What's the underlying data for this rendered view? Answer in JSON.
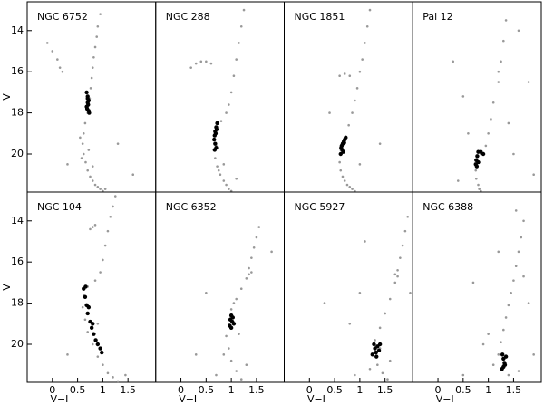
{
  "chart_data": [
    {
      "type": "scatter",
      "title": "NGC 6752",
      "ylabel": "V",
      "xlim": [
        -0.5,
        2.05
      ],
      "ylim": [
        21.85,
        12.6
      ],
      "yticks": [
        14,
        16,
        18,
        20
      ],
      "series": [
        {
          "color": "#999999",
          "x": [
            0.95,
            0.9,
            0.88,
            0.85,
            0.82,
            0.8,
            0.78,
            0.76,
            0.74,
            0.7,
            0.65,
            0.62,
            0.6,
            0.62,
            0.66,
            0.7,
            0.75,
            0.8,
            0.85,
            0.9,
            0.95,
            1.0,
            1.05,
            0.55,
            0.58,
            0.72,
            0.8,
            -0.1,
            0.0,
            0.1,
            0.15,
            0.2,
            1.3,
            0.3,
            1.6
          ],
          "y": [
            13.2,
            13.8,
            14.3,
            14.8,
            15.3,
            15.8,
            16.3,
            16.8,
            17.3,
            18.0,
            18.5,
            19.0,
            19.5,
            20.0,
            20.4,
            20.8,
            21.1,
            21.3,
            21.5,
            21.6,
            21.7,
            21.8,
            21.7,
            19.2,
            20.2,
            19.8,
            20.6,
            14.6,
            15.0,
            15.4,
            15.8,
            16.0,
            19.5,
            20.5,
            21.0
          ]
        },
        {
          "color": "#000000",
          "x": [
            0.68,
            0.7,
            0.72,
            0.71,
            0.69,
            0.73,
            0.7,
            0.68,
            0.72,
            0.7
          ],
          "y": [
            17.0,
            17.2,
            17.4,
            17.6,
            17.8,
            18.0,
            17.3,
            17.7,
            17.9,
            17.5
          ]
        }
      ]
    },
    {
      "type": "scatter",
      "title": "NGC 288",
      "xlim": [
        -0.5,
        2.05
      ],
      "ylim": [
        21.85,
        12.6
      ],
      "series": [
        {
          "color": "#999999",
          "x": [
            1.25,
            1.2,
            1.15,
            1.1,
            1.05,
            1.0,
            0.95,
            0.9,
            0.8,
            0.7,
            0.68,
            0.72,
            0.78,
            0.85,
            0.9,
            0.95,
            1.0,
            0.2,
            0.3,
            0.4,
            0.5,
            0.6,
            0.85,
            1.1,
            0.75
          ],
          "y": [
            13.0,
            13.8,
            14.6,
            15.4,
            16.2,
            17.0,
            17.6,
            18.0,
            18.4,
            19.6,
            20.2,
            20.6,
            21.0,
            21.3,
            21.5,
            21.7,
            21.8,
            15.8,
            15.6,
            15.5,
            15.5,
            15.6,
            20.5,
            21.2,
            20.8
          ]
        },
        {
          "color": "#000000",
          "x": [
            0.72,
            0.7,
            0.68,
            0.67,
            0.66,
            0.68,
            0.7,
            0.69,
            0.67,
            0.71
          ],
          "y": [
            18.5,
            18.7,
            18.9,
            19.1,
            19.3,
            19.5,
            19.7,
            19.0,
            19.8,
            18.8
          ]
        }
      ]
    },
    {
      "type": "scatter",
      "title": "NGC 1851",
      "xlim": [
        -0.5,
        2.05
      ],
      "ylim": [
        21.85,
        12.6
      ],
      "series": [
        {
          "color": "#999999",
          "x": [
            1.2,
            1.15,
            1.1,
            1.05,
            1.0,
            0.95,
            0.9,
            0.85,
            0.78,
            0.7,
            0.62,
            0.6,
            0.62,
            0.66,
            0.7,
            0.75,
            0.8,
            0.85,
            0.9,
            0.6,
            0.7,
            0.8,
            1.0,
            0.4,
            1.4
          ],
          "y": [
            13.0,
            13.8,
            14.6,
            15.4,
            16.0,
            16.8,
            17.4,
            18.0,
            18.6,
            19.2,
            19.8,
            20.4,
            20.8,
            21.1,
            21.3,
            21.5,
            21.6,
            21.7,
            21.8,
            16.2,
            16.1,
            16.2,
            20.5,
            18.0,
            19.5
          ]
        },
        {
          "color": "#000000",
          "x": [
            0.72,
            0.7,
            0.68,
            0.66,
            0.64,
            0.63,
            0.65,
            0.67,
            0.62,
            0.69
          ],
          "y": [
            19.2,
            19.3,
            19.4,
            19.5,
            19.6,
            19.7,
            19.8,
            19.9,
            20.0,
            19.45
          ]
        }
      ]
    },
    {
      "type": "scatter",
      "title": "Pal 12",
      "xlim": [
        -0.5,
        2.05
      ],
      "ylim": [
        21.85,
        12.6
      ],
      "series": [
        {
          "color": "#999999",
          "x": [
            1.35,
            1.3,
            1.25,
            1.2,
            1.1,
            1.05,
            1.0,
            0.95,
            0.85,
            0.78,
            0.75,
            0.76,
            0.8,
            0.82,
            0.85,
            1.6,
            1.8,
            1.4,
            0.3,
            0.5,
            1.5,
            1.9,
            0.6,
            1.2,
            0.4
          ],
          "y": [
            13.5,
            14.5,
            15.5,
            16.5,
            17.5,
            18.3,
            19.0,
            19.6,
            20.0,
            20.4,
            20.8,
            21.2,
            21.5,
            21.7,
            21.8,
            14.0,
            16.5,
            18.5,
            15.5,
            17.2,
            20.0,
            21.0,
            19.0,
            16.0,
            21.3
          ]
        },
        {
          "color": "#000000",
          "x": [
            0.8,
            0.78,
            0.76,
            0.75,
            0.77,
            0.85,
            0.9,
            0.8
          ],
          "y": [
            19.9,
            20.1,
            20.3,
            20.5,
            20.6,
            19.9,
            20.0,
            20.4
          ]
        }
      ]
    },
    {
      "type": "scatter",
      "title": "NGC 104",
      "ylabel": "V",
      "xlabel": "V−I",
      "xlim": [
        -0.5,
        2.05
      ],
      "ylim": [
        21.85,
        12.6
      ],
      "xticks": [
        0,
        0.5,
        1,
        1.5
      ],
      "yticks": [
        14,
        16,
        18,
        20
      ],
      "series": [
        {
          "color": "#999999",
          "x": [
            1.25,
            1.2,
            1.15,
            1.1,
            1.05,
            1.0,
            0.95,
            0.85,
            0.7,
            0.62,
            0.6,
            0.65,
            0.7,
            0.8,
            0.9,
            1.0,
            1.1,
            1.2,
            1.3,
            0.8,
            0.75,
            0.85,
            1.45,
            0.3,
            0.9
          ],
          "y": [
            12.8,
            13.3,
            13.8,
            14.5,
            15.2,
            15.9,
            16.5,
            16.9,
            17.2,
            17.6,
            18.2,
            18.8,
            19.4,
            20.0,
            20.6,
            21.0,
            21.4,
            21.6,
            21.8,
            14.3,
            14.4,
            14.2,
            21.5,
            20.5,
            19.0
          ]
        },
        {
          "color": "#000000",
          "x": [
            0.62,
            0.65,
            0.68,
            0.7,
            0.75,
            0.78,
            0.82,
            0.86,
            0.9,
            0.95,
            0.98,
            0.66,
            0.72,
            0.8
          ],
          "y": [
            17.3,
            17.7,
            18.1,
            18.5,
            18.9,
            19.2,
            19.5,
            19.8,
            20.0,
            20.2,
            20.4,
            17.2,
            18.2,
            19.0
          ]
        }
      ]
    },
    {
      "type": "scatter",
      "title": "NGC 6352",
      "xlabel": "V−I",
      "xlim": [
        -0.5,
        2.05
      ],
      "ylim": [
        21.85,
        12.6
      ],
      "xticks": [
        0,
        0.5,
        1,
        1.5
      ],
      "series": [
        {
          "color": "#999999",
          "x": [
            1.55,
            1.5,
            1.45,
            1.4,
            1.35,
            1.3,
            1.2,
            1.1,
            1.0,
            0.95,
            0.9,
            0.95,
            1.0,
            1.1,
            1.2,
            0.85,
            1.15,
            1.4,
            1.35,
            0.5,
            0.3,
            1.8,
            0.7,
            1.3,
            1.05
          ],
          "y": [
            14.3,
            14.8,
            15.3,
            15.8,
            16.3,
            16.8,
            17.3,
            17.8,
            18.3,
            19.0,
            19.6,
            20.2,
            20.8,
            21.3,
            21.7,
            20.5,
            19.5,
            16.5,
            16.6,
            17.5,
            20.5,
            15.5,
            21.5,
            21.0,
            18.0
          ]
        },
        {
          "color": "#000000",
          "x": [
            1.0,
            0.98,
            1.02,
            1.05,
            0.97,
            1.0,
            1.03
          ],
          "y": [
            18.6,
            18.8,
            18.9,
            19.0,
            19.1,
            19.2,
            18.7
          ]
        }
      ]
    },
    {
      "type": "scatter",
      "title": "NGC 5927",
      "xlabel": "V−I",
      "xlim": [
        -0.5,
        2.05
      ],
      "ylim": [
        21.85,
        12.6
      ],
      "xticks": [
        0,
        0.5,
        1,
        1.5
      ],
      "series": [
        {
          "color": "#999999",
          "x": [
            1.95,
            1.9,
            1.85,
            1.8,
            1.75,
            1.7,
            1.6,
            1.5,
            1.4,
            1.3,
            1.25,
            1.35,
            1.45,
            1.55,
            1.2,
            1.4,
            1.7,
            1.75,
            0.8,
            1.0,
            0.3,
            1.1,
            1.6,
            2.0,
            0.9
          ],
          "y": [
            13.8,
            14.5,
            15.2,
            15.8,
            16.4,
            17.0,
            17.8,
            18.5,
            19.2,
            19.8,
            20.5,
            21.0,
            21.4,
            21.7,
            21.2,
            20.2,
            16.6,
            16.7,
            19.0,
            17.5,
            18.0,
            15.0,
            20.8,
            17.5,
            21.5
          ]
        },
        {
          "color": "#000000",
          "x": [
            1.28,
            1.3,
            1.32,
            1.35,
            1.38,
            1.25,
            1.33,
            1.4
          ],
          "y": [
            20.0,
            20.2,
            20.4,
            20.1,
            20.3,
            20.5,
            20.6,
            20.0
          ]
        }
      ]
    },
    {
      "type": "scatter",
      "title": "NGC 6388",
      "xlabel": "V−I",
      "xlim": [
        -0.5,
        2.05
      ],
      "ylim": [
        21.85,
        12.6
      ],
      "xticks": [
        0,
        0.5,
        1,
        1.5
      ],
      "series": [
        {
          "color": "#999999",
          "x": [
            1.7,
            1.65,
            1.6,
            1.55,
            1.5,
            1.45,
            1.4,
            1.35,
            1.3,
            1.25,
            1.2,
            1.3,
            1.4,
            1.5,
            1.6,
            1.1,
            1.0,
            1.8,
            0.9,
            0.7,
            1.7,
            1.9,
            1.55,
            1.2,
            0.5
          ],
          "y": [
            14.0,
            14.8,
            15.5,
            16.2,
            16.9,
            17.5,
            18.1,
            18.7,
            19.3,
            19.9,
            20.5,
            21.0,
            21.5,
            21.8,
            21.3,
            21.0,
            19.5,
            18.0,
            20.0,
            17.0,
            16.7,
            20.5,
            13.5,
            15.5,
            21.5
          ]
        },
        {
          "color": "#000000",
          "x": [
            1.28,
            1.3,
            1.32,
            1.3,
            1.27,
            1.35,
            1.33
          ],
          "y": [
            20.5,
            20.7,
            20.9,
            21.1,
            21.2,
            20.6,
            21.0
          ]
        }
      ]
    }
  ]
}
